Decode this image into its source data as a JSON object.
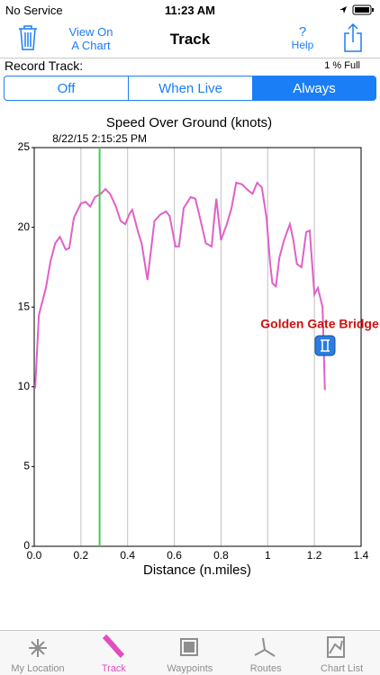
{
  "status_bar": {
    "carrier": "No Service",
    "time": "11:23 AM"
  },
  "nav_bar": {
    "left_button": [
      "View On",
      "A Chart"
    ],
    "title": "Track",
    "help_icon": "?",
    "help": "Help"
  },
  "record": {
    "label": "Record Track:",
    "usage": "1 % Full"
  },
  "segments": {
    "options": [
      "Off",
      "When Live",
      "Always"
    ],
    "selected": 2
  },
  "chart_data": {
    "type": "line",
    "title": "Speed Over Ground (knots)",
    "x_label": "Distance (n.miles)",
    "x": [
      0.004,
      0.02,
      0.05,
      0.07,
      0.09,
      0.11,
      0.135,
      0.15,
      0.17,
      0.2,
      0.22,
      0.24,
      0.26,
      0.285,
      0.305,
      0.325,
      0.35,
      0.37,
      0.39,
      0.41,
      0.42,
      0.445,
      0.46,
      0.485,
      0.515,
      0.54,
      0.565,
      0.58,
      0.605,
      0.62,
      0.64,
      0.67,
      0.69,
      0.71,
      0.735,
      0.76,
      0.77,
      0.78,
      0.8,
      0.825,
      0.845,
      0.865,
      0.89,
      0.91,
      0.935,
      0.955,
      0.975,
      0.995,
      1.01,
      1.02,
      1.035,
      1.05,
      1.07,
      1.095,
      1.11,
      1.125,
      1.145,
      1.165,
      1.18,
      1.2,
      1.215,
      1.235,
      1.245
    ],
    "series": [
      {
        "name": "Speed",
        "color": "#e060c8",
        "values": [
          9.9,
          14.5,
          16.2,
          17.9,
          19.0,
          19.4,
          18.6,
          18.7,
          20.6,
          21.5,
          21.6,
          21.3,
          21.9,
          22.1,
          22.4,
          22.1,
          21.3,
          20.4,
          20.2,
          20.9,
          21.1,
          19.7,
          19.0,
          16.7,
          20.4,
          20.8,
          21.0,
          20.7,
          18.8,
          18.8,
          21.2,
          21.9,
          21.8,
          20.6,
          19.0,
          18.8,
          20.4,
          21.8,
          19.2,
          20.2,
          21.2,
          22.8,
          22.7,
          22.4,
          22.1,
          22.8,
          22.5,
          20.6,
          17.8,
          16.5,
          16.3,
          18.1,
          19.2,
          20.2,
          19.2,
          17.7,
          17.5,
          19.7,
          19.8,
          15.8,
          16.2,
          15.0,
          9.8
        ]
      }
    ],
    "xlim": [
      0,
      1.4
    ],
    "xticks": [
      {
        "value": 0,
        "label": "0.0"
      },
      0.2,
      0.4,
      0.6,
      0.8,
      1,
      1.2,
      1.4
    ],
    "ylim": [
      0,
      25
    ],
    "yticks": [
      0,
      5,
      10,
      15,
      20,
      25
    ],
    "grid": "x",
    "cursor": {
      "x": 0.28,
      "label": "8/22/15  2:15:25 PM",
      "color": "#44cc55"
    },
    "annotation": {
      "text": "Golden Gate Bridge",
      "color": "#cc1111"
    }
  },
  "tab_bar": {
    "items": [
      "My Location",
      "Track",
      "Waypoints",
      "Routes",
      "Chart List"
    ],
    "selected": 1
  }
}
